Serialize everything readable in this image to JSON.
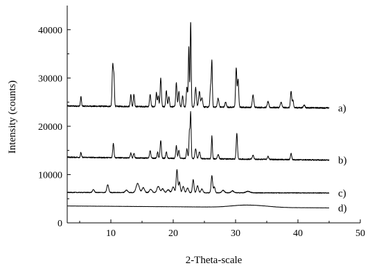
{
  "chart_data": {
    "type": "line",
    "xlabel": "2-Theta-scale",
    "ylabel": "Intensity (counts)",
    "xlim": [
      3,
      50
    ],
    "ylim": [
      0,
      45000
    ],
    "xticks": [
      10,
      20,
      30,
      40,
      50
    ],
    "yticks": [
      0,
      10000,
      20000,
      30000,
      40000
    ],
    "grid": false,
    "legend": "none",
    "x_range": [
      3,
      45
    ],
    "series": [
      {
        "name": "a)",
        "baseline_start": 24200,
        "baseline_end": 23800,
        "noise": 280,
        "peaks": [
          [
            5.2,
            2000,
            0.08
          ],
          [
            10.3,
            8600,
            0.1
          ],
          [
            10.5,
            5500,
            0.08
          ],
          [
            13.2,
            2500,
            0.09
          ],
          [
            13.7,
            2500,
            0.09
          ],
          [
            16.3,
            2500,
            0.1
          ],
          [
            17.3,
            2900,
            0.09
          ],
          [
            17.6,
            2200,
            0.09
          ],
          [
            18.0,
            5900,
            0.1
          ],
          [
            18.9,
            3300,
            0.1
          ],
          [
            19.3,
            2000,
            0.1
          ],
          [
            20.5,
            5000,
            0.1
          ],
          [
            20.9,
            3200,
            0.1
          ],
          [
            21.5,
            2300,
            0.1
          ],
          [
            22.2,
            4200,
            0.1
          ],
          [
            22.5,
            12400,
            0.08
          ],
          [
            22.8,
            17700,
            0.08
          ],
          [
            23.6,
            4000,
            0.12
          ],
          [
            24.2,
            3200,
            0.12
          ],
          [
            24.6,
            2000,
            0.12
          ],
          [
            26.0,
            4300,
            0.1
          ],
          [
            26.2,
            9100,
            0.08
          ],
          [
            27.2,
            1800,
            0.12
          ],
          [
            28.4,
            1000,
            0.12
          ],
          [
            30.1,
            8100,
            0.1
          ],
          [
            30.4,
            5800,
            0.1
          ],
          [
            32.8,
            2500,
            0.12
          ],
          [
            35.2,
            1200,
            0.12
          ],
          [
            37.3,
            1100,
            0.12
          ],
          [
            38.9,
            3400,
            0.1
          ],
          [
            39.2,
            1500,
            0.1
          ],
          [
            41.0,
            600,
            0.12
          ]
        ]
      },
      {
        "name": "b)",
        "baseline_start": 13600,
        "baseline_end": 13000,
        "noise": 240,
        "peaks": [
          [
            5.2,
            1000,
            0.08
          ],
          [
            10.4,
            3000,
            0.1
          ],
          [
            13.2,
            1000,
            0.09
          ],
          [
            13.7,
            1000,
            0.09
          ],
          [
            16.3,
            1600,
            0.1
          ],
          [
            17.5,
            1300,
            0.09
          ],
          [
            18.0,
            3700,
            0.1
          ],
          [
            18.9,
            1300,
            0.1
          ],
          [
            20.5,
            2600,
            0.1
          ],
          [
            20.9,
            1600,
            0.1
          ],
          [
            22.2,
            2000,
            0.1
          ],
          [
            22.6,
            5600,
            0.08
          ],
          [
            22.8,
            9400,
            0.08
          ],
          [
            23.6,
            2000,
            0.12
          ],
          [
            24.2,
            1400,
            0.12
          ],
          [
            26.2,
            4700,
            0.08
          ],
          [
            27.2,
            900,
            0.12
          ],
          [
            30.2,
            5300,
            0.1
          ],
          [
            32.8,
            800,
            0.12
          ],
          [
            35.2,
            600,
            0.12
          ],
          [
            38.9,
            1300,
            0.1
          ]
        ]
      },
      {
        "name": "c)",
        "baseline_start": 6300,
        "baseline_end": 6200,
        "noise": 150,
        "peaks": [
          [
            7.2,
            600,
            0.15
          ],
          [
            9.5,
            1600,
            0.15
          ],
          [
            12.5,
            500,
            0.2
          ],
          [
            14.3,
            1900,
            0.25
          ],
          [
            15.2,
            1000,
            0.2
          ],
          [
            16.4,
            700,
            0.2
          ],
          [
            17.6,
            1300,
            0.2
          ],
          [
            18.3,
            800,
            0.2
          ],
          [
            19.2,
            600,
            0.2
          ],
          [
            20.0,
            1200,
            0.18
          ],
          [
            20.6,
            4800,
            0.12
          ],
          [
            21.0,
            2200,
            0.12
          ],
          [
            21.6,
            1300,
            0.15
          ],
          [
            22.3,
            1000,
            0.15
          ],
          [
            23.2,
            2700,
            0.12
          ],
          [
            23.9,
            1400,
            0.15
          ],
          [
            24.6,
            800,
            0.15
          ],
          [
            26.2,
            3500,
            0.12
          ],
          [
            26.6,
            1200,
            0.12
          ],
          [
            28.0,
            500,
            0.2
          ],
          [
            29.5,
            400,
            0.2
          ],
          [
            32.0,
            300,
            0.3
          ]
        ]
      },
      {
        "name": "d)",
        "baseline_start": 3500,
        "baseline_end": 3100,
        "noise": 40,
        "peaks": [
          [
            31.0,
            350,
            2.0
          ],
          [
            34.0,
            250,
            2.0
          ]
        ]
      }
    ]
  }
}
